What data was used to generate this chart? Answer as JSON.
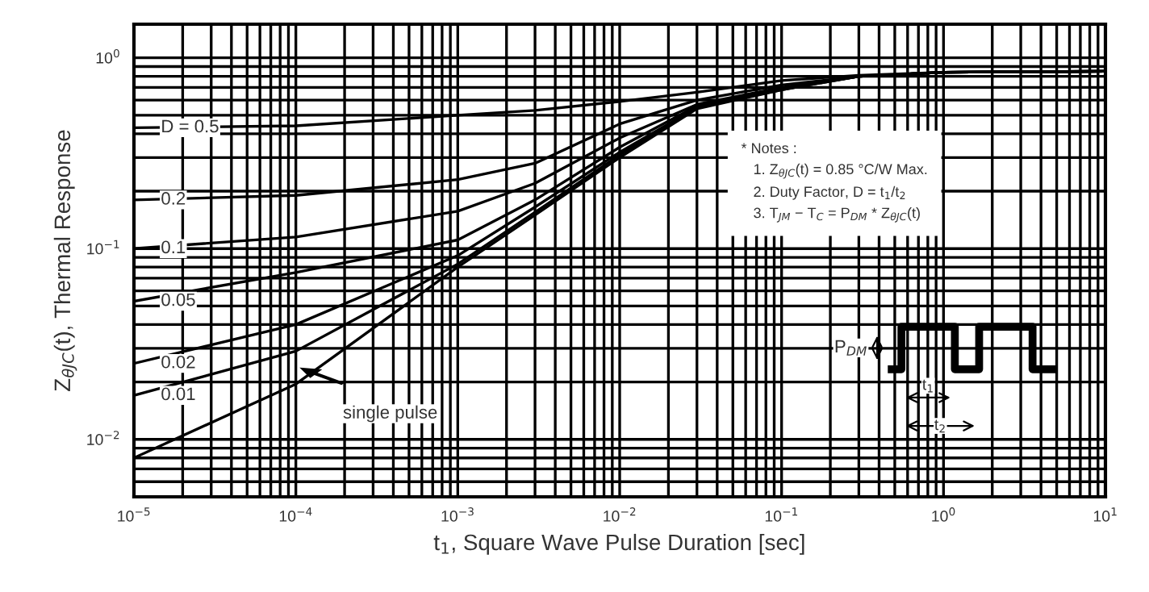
{
  "chart_data": {
    "type": "line",
    "xlabel": "t$_{1}$, Square Wave Pulse Duration [sec]",
    "ylabel": "Z$_{θJC}$(t), Thermal Response",
    "log": "xy",
    "grid": true,
    "legend": false,
    "marker": "none",
    "line_style": "solid",
    "xlim": [
      1e-05,
      10
    ],
    "ylim": [
      0.005,
      1.5
    ],
    "xticks": [
      {
        "value": 1e-05,
        "label": "10$^{−5}$"
      },
      {
        "value": 0.0001,
        "label": "10$^{−4}$"
      },
      {
        "value": 0.001,
        "label": "10$^{−3}$"
      },
      {
        "value": 0.01,
        "label": "10$^{−2}$"
      },
      {
        "value": 0.1,
        "label": "10$^{−1}$"
      },
      {
        "value": 1,
        "label": "10$^{0}$"
      },
      {
        "value": 10,
        "label": "10$^{1}$"
      }
    ],
    "yticks": [
      {
        "value": 0.01,
        "label": "10$^{−2}$"
      },
      {
        "value": 0.1,
        "label": "10$^{−1}$"
      },
      {
        "value": 1,
        "label": "10$^{0}$"
      }
    ],
    "x": [
      1e-05,
      0.0001,
      0.001,
      0.003,
      0.01,
      0.03,
      0.1,
      0.3,
      1,
      10
    ],
    "series": [
      {
        "name": "D = 0.5",
        "color": "#000000",
        "values": [
          0.43,
          0.44,
          0.5,
          0.53,
          0.59,
          0.66,
          0.76,
          0.81,
          0.84,
          0.85
        ]
      },
      {
        "name": "0.2",
        "color": "#000000",
        "values": [
          0.18,
          0.19,
          0.23,
          0.28,
          0.45,
          0.6,
          0.72,
          0.8,
          0.84,
          0.85
        ]
      },
      {
        "name": "0.1",
        "color": "#000000",
        "values": [
          0.1,
          0.115,
          0.157,
          0.22,
          0.38,
          0.57,
          0.7,
          0.8,
          0.84,
          0.85
        ]
      },
      {
        "name": "0.05",
        "color": "#000000",
        "values": [
          0.053,
          0.075,
          0.111,
          0.18,
          0.34,
          0.56,
          0.69,
          0.8,
          0.84,
          0.85
        ]
      },
      {
        "name": "0.02",
        "color": "#000000",
        "values": [
          0.025,
          0.04,
          0.092,
          0.165,
          0.32,
          0.55,
          0.69,
          0.8,
          0.84,
          0.85
        ]
      },
      {
        "name": "0.01",
        "color": "#000000",
        "values": [
          0.017,
          0.029,
          0.083,
          0.155,
          0.31,
          0.55,
          0.68,
          0.8,
          0.84,
          0.85
        ]
      },
      {
        "name": "single pulse",
        "color": "#000000",
        "values": [
          0.008,
          0.0195,
          0.08,
          0.15,
          0.3,
          0.54,
          0.68,
          0.8,
          0.84,
          0.85
        ]
      }
    ],
    "annotations": [
      "* Notes :",
      "1. Z$_{θJC}$(t) = 0.85 °C/W Max.",
      "2. Duty Factor, D = t$_{1}$/t$_{2}$",
      "3. T$_{JM}$ − T$_{C}$ = P$_{DM}$ * Z$_{θJC}$(t)",
      "P$_{DM}$",
      "t$_{1}$",
      "t$_{2}$"
    ]
  }
}
